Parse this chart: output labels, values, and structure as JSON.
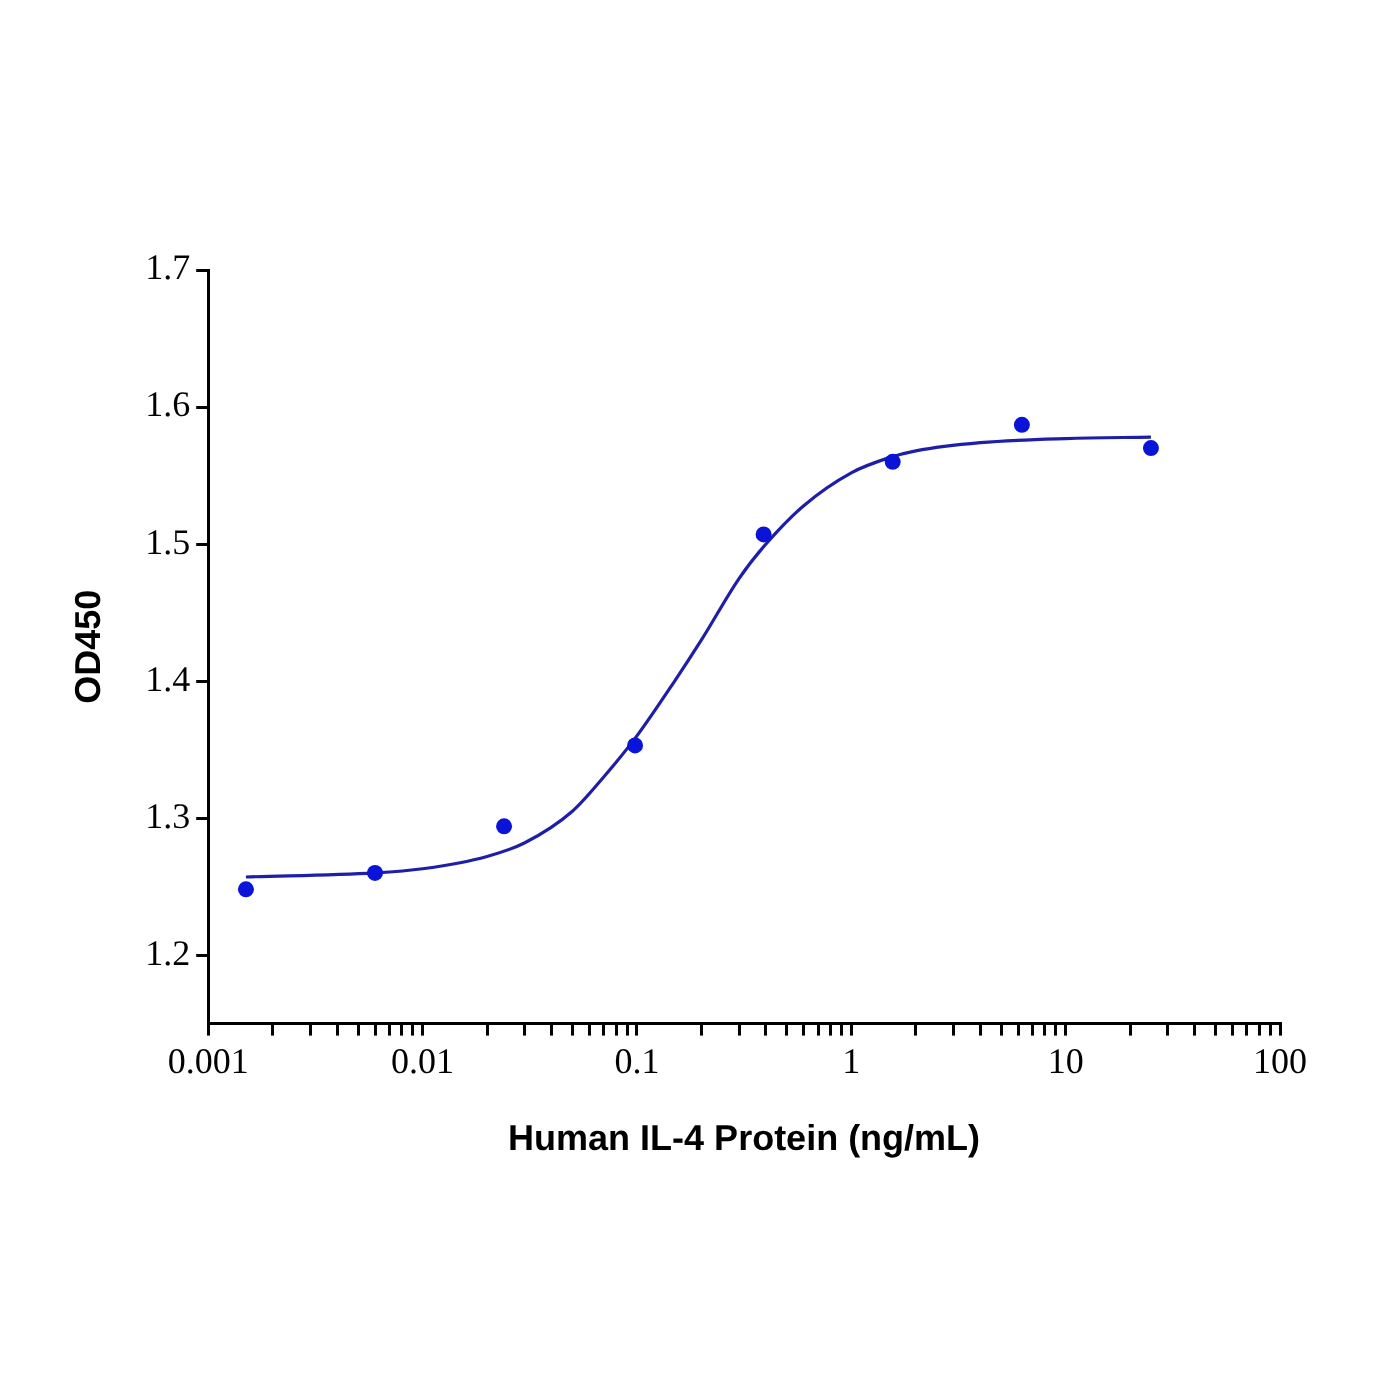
{
  "chart_data": {
    "type": "scatter",
    "xlabel": "Human IL-4 Protein (ng/mL)",
    "ylabel": "OD450",
    "log": "x",
    "grid": false,
    "legend": false,
    "marker": "circle",
    "xlim": [
      0.001,
      100
    ],
    "ylim": [
      1.15,
      1.7
    ],
    "xticks": [
      0.001,
      {
        "value": 0.002,
        "label": null
      },
      {
        "value": 0.003,
        "label": null
      },
      {
        "value": 0.004,
        "label": null
      },
      {
        "value": 0.005,
        "label": null
      },
      {
        "value": 0.006,
        "label": null
      },
      {
        "value": 0.007,
        "label": null
      },
      {
        "value": 0.008,
        "label": null
      },
      {
        "value": 0.009,
        "label": null
      },
      0.01,
      {
        "value": 0.02,
        "label": null
      },
      {
        "value": 0.03,
        "label": null
      },
      {
        "value": 0.04,
        "label": null
      },
      {
        "value": 0.05,
        "label": null
      },
      {
        "value": 0.06,
        "label": null
      },
      {
        "value": 0.07,
        "label": null
      },
      {
        "value": 0.08,
        "label": null
      },
      {
        "value": 0.09,
        "label": null
      },
      0.1,
      {
        "value": 0.2,
        "label": null
      },
      {
        "value": 0.3,
        "label": null
      },
      {
        "value": 0.4,
        "label": null
      },
      {
        "value": 0.5,
        "label": null
      },
      {
        "value": 0.6,
        "label": null
      },
      {
        "value": 0.7,
        "label": null
      },
      {
        "value": 0.8,
        "label": null
      },
      {
        "value": 0.9,
        "label": null
      },
      1,
      {
        "value": 2,
        "label": null
      },
      {
        "value": 3,
        "label": null
      },
      {
        "value": 4,
        "label": null
      },
      {
        "value": 5,
        "label": null
      },
      {
        "value": 6,
        "label": null
      },
      {
        "value": 7,
        "label": null
      },
      {
        "value": 8,
        "label": null
      },
      {
        "value": 9,
        "label": null
      },
      10,
      {
        "value": 20,
        "label": null
      },
      {
        "value": 30,
        "label": null
      },
      {
        "value": 40,
        "label": null
      },
      {
        "value": 50,
        "label": null
      },
      {
        "value": 60,
        "label": null
      },
      {
        "value": 70,
        "label": null
      },
      {
        "value": 80,
        "label": null
      },
      {
        "value": 90,
        "label": null
      },
      100
    ],
    "yticks": [
      {
        "value": 1.2,
        "label": "1.2"
      },
      {
        "value": 1.3,
        "label": "1.3"
      },
      {
        "value": 1.4,
        "label": "1.4"
      },
      {
        "value": 1.5,
        "label": "1.5"
      },
      {
        "value": 1.6,
        "label": "1.6"
      },
      {
        "value": 1.7,
        "label": "1.7"
      }
    ],
    "series": [
      {
        "color": "#0a14d8",
        "x": [
          0.0015,
          0.006,
          0.024,
          0.098,
          0.39,
          1.56,
          6.25,
          25
        ],
        "values": [
          1.248,
          1.26,
          1.294,
          1.353,
          1.507,
          1.56,
          1.587,
          1.57
        ]
      },
      {
        "type": "line",
        "color": "#1e1ea8",
        "line_style": "solid",
        "marker": "none",
        "x": [
          0.0015,
          0.006,
          0.01,
          0.02,
          0.03,
          0.05,
          0.07,
          0.1,
          0.15,
          0.2,
          0.3,
          0.4,
          0.6,
          1,
          1.5,
          2,
          4,
          10,
          25
        ],
        "values": [
          1.257,
          1.26,
          1.263,
          1.272,
          1.282,
          1.305,
          1.33,
          1.36,
          1.4,
          1.43,
          1.475,
          1.5,
          1.528,
          1.552,
          1.563,
          1.568,
          1.574,
          1.577,
          1.578
        ]
      }
    ]
  }
}
